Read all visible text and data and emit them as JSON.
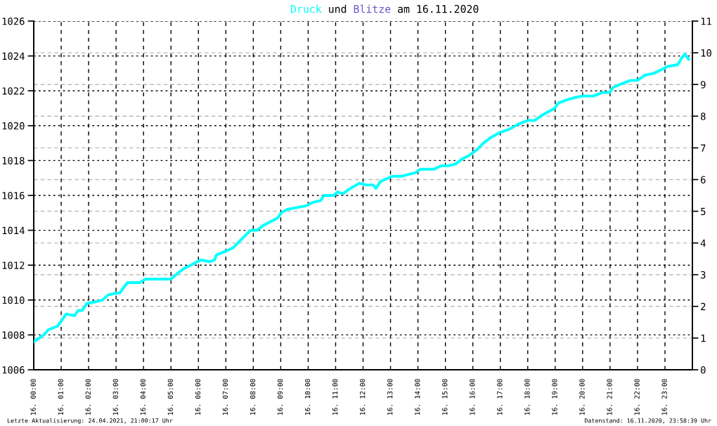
{
  "chart_data": {
    "type": "line",
    "title": "Druck und Blitze am 16.11.2020",
    "x": [
      "2020-11-16T00:00",
      "2020-11-16T00:22",
      "2020-11-16T00:32",
      "2020-11-16T00:52",
      "2020-11-16T01:03",
      "2020-11-16T01:11",
      "2020-11-16T01:29",
      "2020-11-16T01:37",
      "2020-11-16T01:46",
      "2020-11-16T01:56",
      "2020-11-16T02:15",
      "2020-11-16T02:30",
      "2020-11-16T02:43",
      "2020-11-16T03:01",
      "2020-11-16T03:08",
      "2020-11-16T03:16",
      "2020-11-16T03:25",
      "2020-11-16T03:36",
      "2020-11-16T03:52",
      "2020-11-16T04:04",
      "2020-11-16T04:17",
      "2020-11-16T04:38",
      "2020-11-16T05:00",
      "2020-11-16T05:13",
      "2020-11-16T05:28",
      "2020-11-16T05:43",
      "2020-11-16T06:05",
      "2020-11-16T06:25",
      "2020-11-16T06:35",
      "2020-11-16T06:40",
      "2020-11-16T07:00",
      "2020-11-16T07:16",
      "2020-11-16T07:31",
      "2020-11-16T07:46",
      "2020-11-16T07:54",
      "2020-11-16T08:08",
      "2020-11-16T08:23",
      "2020-11-16T08:38",
      "2020-11-16T08:53",
      "2020-11-16T09:01",
      "2020-11-16T09:14",
      "2020-11-16T09:34",
      "2020-11-16T09:55",
      "2020-11-16T10:10",
      "2020-11-16T10:27",
      "2020-11-16T10:35",
      "2020-11-16T10:56",
      "2020-11-16T11:04",
      "2020-11-16T11:16",
      "2020-11-16T11:32",
      "2020-11-16T11:52",
      "2020-11-16T12:07",
      "2020-11-16T12:22",
      "2020-11-16T12:28",
      "2020-11-16T12:38",
      "2020-11-16T13:04",
      "2020-11-16T13:24",
      "2020-11-16T13:39",
      "2020-11-16T13:54",
      "2020-11-16T14:05",
      "2020-11-16T14:25",
      "2020-11-16T14:35",
      "2020-11-16T14:51",
      "2020-11-16T15:06",
      "2020-11-16T15:22",
      "2020-11-16T15:37",
      "2020-11-16T15:52",
      "2020-11-16T16:08",
      "2020-11-16T16:23",
      "2020-11-16T16:38",
      "2020-11-16T16:58",
      "2020-11-16T17:20",
      "2020-11-16T17:40",
      "2020-11-16T18:00",
      "2020-11-16T18:15",
      "2020-11-16T18:31",
      "2020-11-16T18:52",
      "2020-11-16T18:59",
      "2020-11-16T19:07",
      "2020-11-16T19:27",
      "2020-11-16T19:42",
      "2020-11-16T19:58",
      "2020-11-16T20:08",
      "2020-11-16T20:23",
      "2020-11-16T20:44",
      "2020-11-16T20:59",
      "2020-11-16T21:07",
      "2020-11-16T21:25",
      "2020-11-16T21:45",
      "2020-11-16T22:00",
      "2020-11-16T22:16",
      "2020-11-16T22:35",
      "2020-11-16T22:51",
      "2020-11-16T23:06",
      "2020-11-16T23:28",
      "2020-11-16T23:37",
      "2020-11-16T23:44",
      "2020-11-16T23:52"
    ],
    "series": [
      {
        "color": "#00ffff",
        "values": [
          1007.6,
          1008.0,
          1008.3,
          1008.5,
          1008.9,
          1009.2,
          1009.1,
          1009.4,
          1009.4,
          1009.8,
          1009.9,
          1010.0,
          1010.3,
          1010.4,
          1010.4,
          1010.7,
          1011.0,
          1011.0,
          1011.0,
          1011.2,
          1011.2,
          1011.2,
          1011.2,
          1011.5,
          1011.8,
          1012.0,
          1012.3,
          1012.2,
          1012.3,
          1012.6,
          1012.8,
          1013.0,
          1013.4,
          1013.8,
          1014.0,
          1014.0,
          1014.3,
          1014.5,
          1014.7,
          1015.0,
          1015.2,
          1015.3,
          1015.4,
          1015.6,
          1015.7,
          1016.0,
          1016.0,
          1016.2,
          1016.1,
          1016.4,
          1016.7,
          1016.6,
          1016.6,
          1016.4,
          1016.8,
          1017.1,
          1017.1,
          1017.2,
          1017.3,
          1017.5,
          1017.5,
          1017.5,
          1017.7,
          1017.7,
          1017.8,
          1018.1,
          1018.3,
          1018.6,
          1019.0,
          1019.3,
          1019.6,
          1019.8,
          1020.1,
          1020.3,
          1020.3,
          1020.6,
          1020.9,
          1021.0,
          1021.3,
          1021.5,
          1021.6,
          1021.7,
          1021.7,
          1021.7,
          1021.9,
          1021.9,
          1022.2,
          1022.4,
          1022.6,
          1022.6,
          1022.9,
          1023.0,
          1023.2,
          1023.4,
          1023.5,
          1023.9,
          1024.1,
          1023.8
        ]
      }
    ],
    "xlim": [
      "2020-11-16T00:00",
      "2020-11-17T00:00"
    ],
    "xticks": [
      {
        "value": "2020-11-16T00:00",
        "label": "16. 00:00"
      },
      {
        "value": "2020-11-16T01:00",
        "label": "16. 01:00"
      },
      {
        "value": "2020-11-16T02:00",
        "label": "16. 02:00"
      },
      {
        "value": "2020-11-16T03:00",
        "label": "16. 03:00"
      },
      {
        "value": "2020-11-16T04:00",
        "label": "16. 04:00"
      },
      {
        "value": "2020-11-16T05:00",
        "label": "16. 05:00"
      },
      {
        "value": "2020-11-16T06:00",
        "label": "16. 06:00"
      },
      {
        "value": "2020-11-16T07:00",
        "label": "16. 07:00"
      },
      {
        "value": "2020-11-16T08:00",
        "label": "16. 08:00"
      },
      {
        "value": "2020-11-16T09:00",
        "label": "16. 09:00"
      },
      {
        "value": "2020-11-16T10:00",
        "label": "16. 10:00"
      },
      {
        "value": "2020-11-16T11:00",
        "label": "16. 11:00"
      },
      {
        "value": "2020-11-16T12:00",
        "label": "16. 12:00"
      },
      {
        "value": "2020-11-16T13:00",
        "label": "16. 13:00"
      },
      {
        "value": "2020-11-16T14:00",
        "label": "16. 14:00"
      },
      {
        "value": "2020-11-16T15:00",
        "label": "16. 15:00"
      },
      {
        "value": "2020-11-16T16:00",
        "label": "16. 16:00"
      },
      {
        "value": "2020-11-16T17:00",
        "label": "16. 17:00"
      },
      {
        "value": "2020-11-16T18:00",
        "label": "16. 18:00"
      },
      {
        "value": "2020-11-16T19:00",
        "label": "16. 19:00"
      },
      {
        "value": "2020-11-16T20:00",
        "label": "16. 20:00"
      },
      {
        "value": "2020-11-16T21:00",
        "label": "16. 21:00"
      },
      {
        "value": "2020-11-16T22:00",
        "label": "16. 22:00"
      },
      {
        "value": "2020-11-16T23:00",
        "label": "16. 23:00"
      }
    ],
    "ylim": [
      1006,
      1026
    ],
    "yticks": [
      1006,
      1008,
      1010,
      1012,
      1014,
      1016,
      1018,
      1020,
      1022,
      1024,
      1026
    ],
    "y2lim": [
      0,
      11
    ],
    "y2ticks": [
      0,
      1,
      2,
      3,
      4,
      5,
      6,
      7,
      8,
      9,
      10,
      11
    ],
    "grid": true,
    "annotations": [
      "Letzte Aktualisierung: 24.04.2021, 21:00:17 Uhr",
      "Datenstand: 16.11.2020, 23:58:39 Uhr"
    ]
  }
}
